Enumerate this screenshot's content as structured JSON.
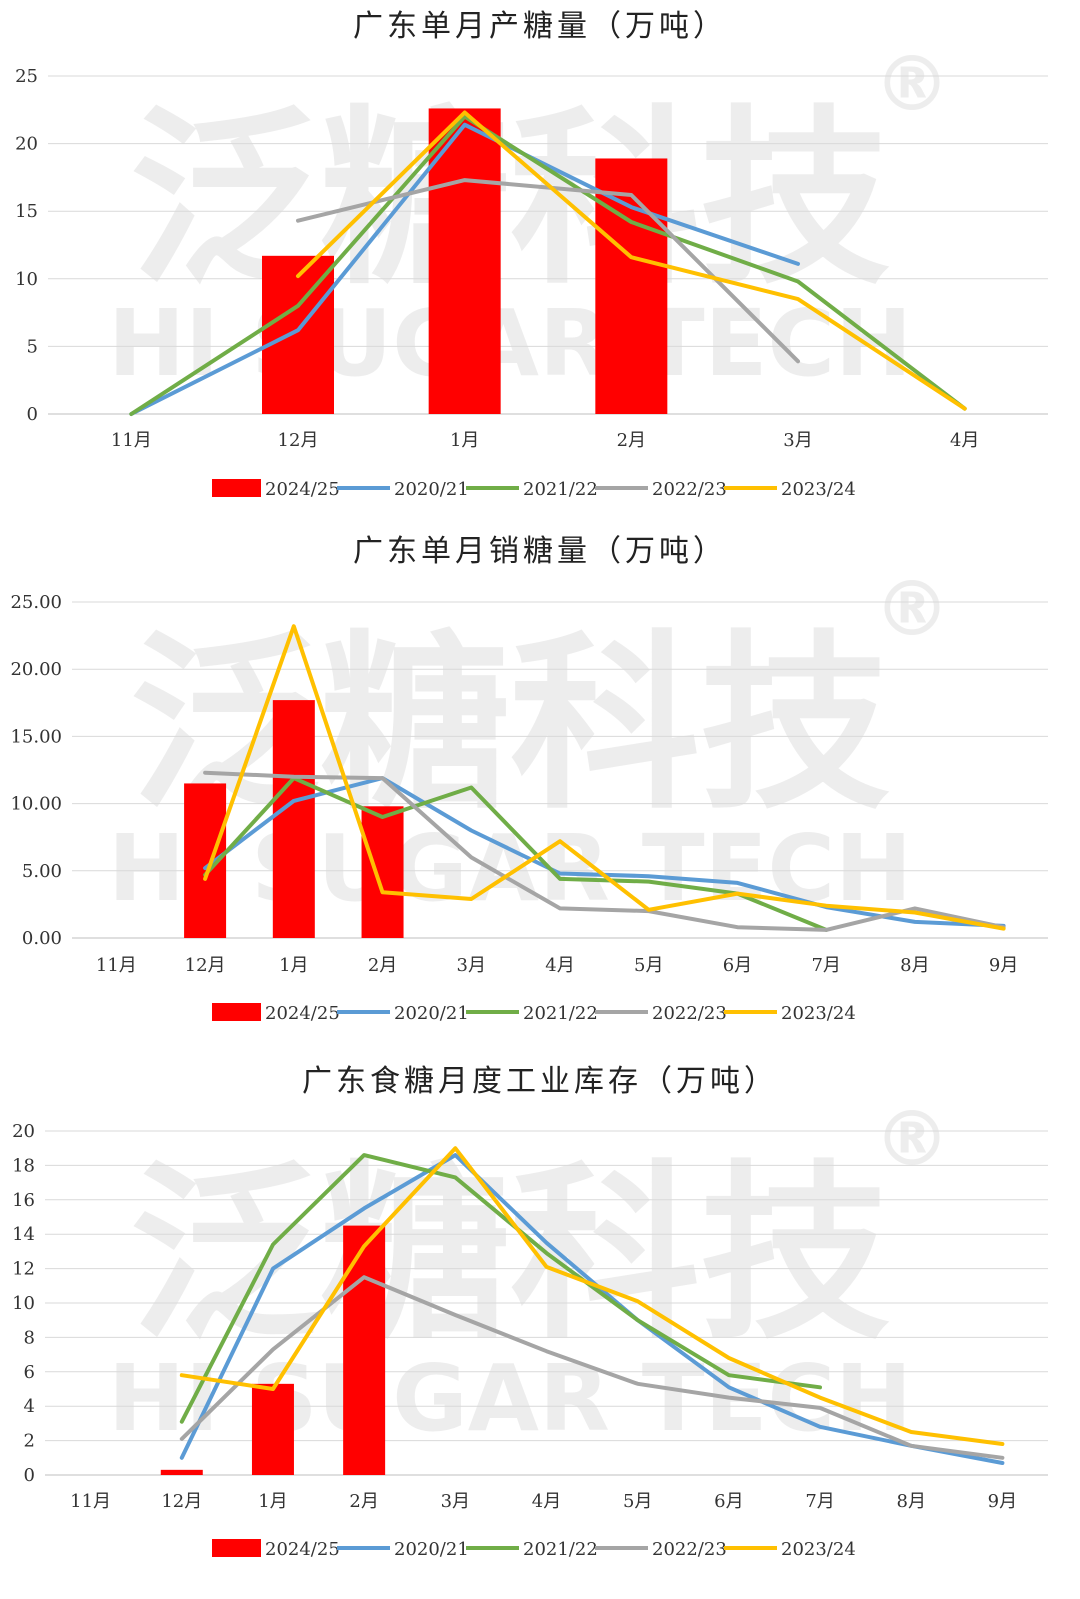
{
  "colors": {
    "2024/25": "#ff0000",
    "2020/21": "#5b9bd5",
    "2021/22": "#70ad47",
    "2022/23": "#a5a5a5",
    "2023/24": "#ffc000"
  },
  "watermark": {
    "cn": "泛糖科技",
    "en": "HI SUGAR TECH",
    "mark": "®"
  },
  "chart_data": [
    {
      "type": "bar",
      "title": "广东单月产糖量（万吨）",
      "categories": [
        "11月",
        "12月",
        "1月",
        "2月",
        "3月",
        "4月"
      ],
      "ylim": [
        0,
        25
      ],
      "yticks": [
        0,
        5,
        10,
        15,
        20,
        25
      ],
      "ytick_labels": [
        "0",
        "5",
        "10",
        "15",
        "20",
        "25"
      ],
      "grid": true,
      "legend": "bottom",
      "series": [
        {
          "name": "2024/25",
          "kind": "bar",
          "values": [
            null,
            11.7,
            22.6,
            18.9,
            null,
            null
          ]
        },
        {
          "name": "2020/21",
          "kind": "line",
          "values": [
            0,
            6.2,
            21.4,
            15.3,
            11.1,
            null
          ]
        },
        {
          "name": "2021/22",
          "kind": "line",
          "values": [
            0,
            8.0,
            22.0,
            14.2,
            9.8,
            0.4
          ]
        },
        {
          "name": "2022/23",
          "kind": "line",
          "values": [
            null,
            14.3,
            17.3,
            16.2,
            3.9,
            null
          ]
        },
        {
          "name": "2023/24",
          "kind": "line",
          "values": [
            null,
            10.2,
            22.3,
            11.6,
            8.5,
            0.4
          ]
        }
      ]
    },
    {
      "type": "bar",
      "title": "广东单月销糖量（万吨）",
      "categories": [
        "11月",
        "12月",
        "1月",
        "2月",
        "3月",
        "4月",
        "5月",
        "6月",
        "7月",
        "8月",
        "9月"
      ],
      "ylim": [
        0,
        25
      ],
      "yticks": [
        0,
        5,
        10,
        15,
        20,
        25
      ],
      "ytick_labels": [
        "0.00",
        "5.00",
        "10.00",
        "15.00",
        "20.00",
        "25.00"
      ],
      "grid": true,
      "legend": "bottom",
      "series": [
        {
          "name": "2024/25",
          "kind": "bar",
          "values": [
            null,
            11.5,
            17.7,
            9.8,
            null,
            null,
            null,
            null,
            null,
            null,
            null
          ]
        },
        {
          "name": "2020/21",
          "kind": "line",
          "values": [
            null,
            5.2,
            10.2,
            11.9,
            8.0,
            4.8,
            4.6,
            4.1,
            2.3,
            1.2,
            0.9
          ]
        },
        {
          "name": "2021/22",
          "kind": "line",
          "values": [
            null,
            4.7,
            11.9,
            9.0,
            11.2,
            4.4,
            4.2,
            3.3,
            0.6,
            null,
            null
          ]
        },
        {
          "name": "2022/23",
          "kind": "line",
          "values": [
            null,
            12.3,
            12.0,
            11.9,
            6.0,
            2.2,
            2.0,
            0.8,
            0.6,
            2.2,
            0.8
          ]
        },
        {
          "name": "2023/24",
          "kind": "line",
          "values": [
            null,
            4.4,
            23.2,
            3.4,
            2.9,
            7.2,
            2.1,
            3.3,
            2.4,
            1.9,
            0.7
          ]
        }
      ]
    },
    {
      "type": "bar",
      "title": "广东食糖月度工业库存（万吨）",
      "categories": [
        "11月",
        "12月",
        "1月",
        "2月",
        "3月",
        "4月",
        "5月",
        "6月",
        "7月",
        "8月",
        "9月"
      ],
      "ylim": [
        0,
        20
      ],
      "yticks": [
        0,
        2,
        4,
        6,
        8,
        10,
        12,
        14,
        16,
        18,
        20
      ],
      "ytick_labels": [
        "0",
        "2",
        "4",
        "6",
        "8",
        "10",
        "12",
        "14",
        "16",
        "18",
        "20"
      ],
      "grid": true,
      "legend": "bottom",
      "series": [
        {
          "name": "2024/25",
          "kind": "bar",
          "values": [
            null,
            0.3,
            5.3,
            14.5,
            null,
            null,
            null,
            null,
            null,
            null,
            null
          ]
        },
        {
          "name": "2020/21",
          "kind": "line",
          "values": [
            null,
            1.0,
            12.0,
            15.5,
            18.6,
            13.5,
            9.0,
            5.1,
            2.8,
            1.7,
            0.7
          ]
        },
        {
          "name": "2021/22",
          "kind": "line",
          "values": [
            null,
            3.1,
            13.4,
            18.6,
            17.3,
            12.9,
            9.0,
            5.8,
            5.1,
            null,
            null
          ]
        },
        {
          "name": "2022/23",
          "kind": "line",
          "values": [
            null,
            2.1,
            7.3,
            11.5,
            9.3,
            7.2,
            5.3,
            4.5,
            3.9,
            1.7,
            1.0
          ]
        },
        {
          "name": "2023/24",
          "kind": "line",
          "values": [
            null,
            5.8,
            5.0,
            13.3,
            19.0,
            12.1,
            10.1,
            6.8,
            4.5,
            2.5,
            1.8
          ]
        }
      ]
    }
  ]
}
